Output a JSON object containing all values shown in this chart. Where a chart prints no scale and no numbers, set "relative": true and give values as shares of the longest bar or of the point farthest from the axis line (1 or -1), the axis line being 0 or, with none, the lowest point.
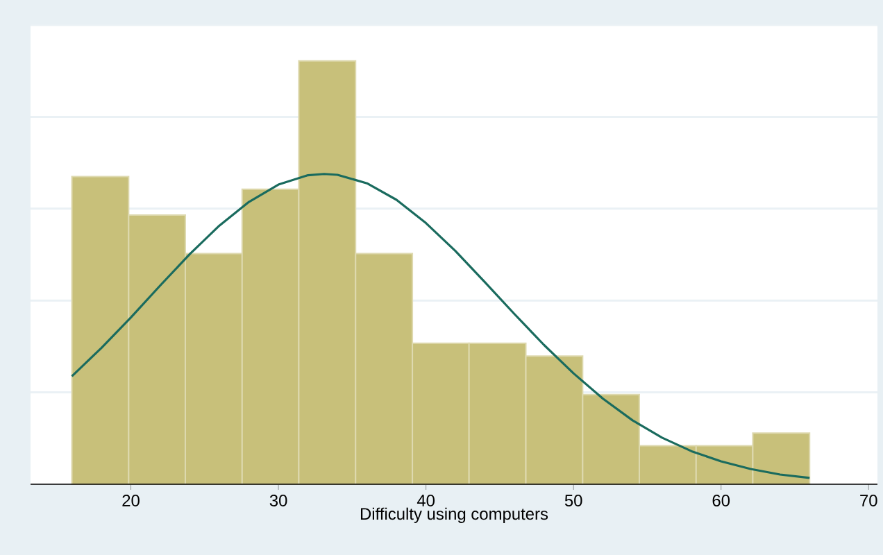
{
  "chart_data": {
    "type": "histogram",
    "xlabel": "Difficulty using computers",
    "relative": true,
    "bins": [
      16,
      19.85,
      23.69,
      27.54,
      31.38,
      35.23,
      39.08,
      42.92,
      46.77,
      50.62,
      54.46,
      58.31,
      62.15,
      66
    ],
    "values": [
      0.727,
      0.636,
      0.545,
      0.697,
      1,
      0.545,
      0.333,
      0.333,
      0.303,
      0.212,
      0.091,
      0.091,
      0.121
    ],
    "color": "#c8c07a",
    "series": [
      {
        "type": "line",
        "color": "#1a6b5e",
        "x": [
          16,
          18,
          20,
          22,
          24,
          26,
          28,
          30,
          32,
          33.1,
          34,
          36,
          38,
          40,
          42,
          44,
          46,
          48,
          50,
          52,
          54,
          56,
          58,
          60,
          62,
          64,
          66
        ],
        "values": [
          0.255,
          0.322,
          0.394,
          0.47,
          0.544,
          0.611,
          0.667,
          0.708,
          0.73,
          0.733,
          0.731,
          0.711,
          0.672,
          0.617,
          0.551,
          0.477,
          0.402,
          0.329,
          0.262,
          0.202,
          0.151,
          0.11,
          0.078,
          0.054,
          0.036,
          0.023,
          0.015
        ]
      }
    ],
    "xlim": [
      13.2,
      70.6
    ],
    "xticks": [
      20,
      30,
      40,
      50,
      60,
      70
    ],
    "grid": "y"
  }
}
